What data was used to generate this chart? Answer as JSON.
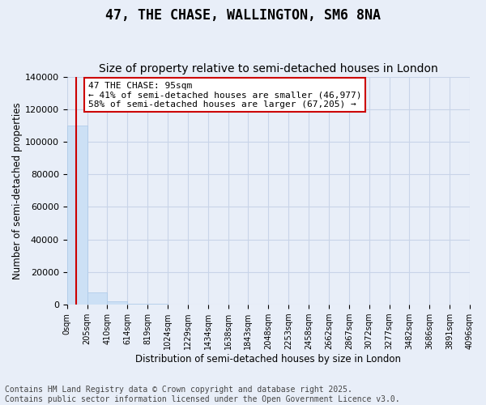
{
  "title": "47, THE CHASE, WALLINGTON, SM6 8NA",
  "subtitle": "Size of property relative to semi-detached houses in London",
  "ylabel": "Number of semi-detached properties",
  "xlabel": "Distribution of semi-detached houses by size in London",
  "footnote1": "Contains HM Land Registry data © Crown copyright and database right 2025.",
  "footnote2": "Contains public sector information licensed under the Open Government Licence v3.0.",
  "annotation_line1": "47 THE CHASE: 95sqm",
  "annotation_line2": "← 41% of semi-detached houses are smaller (46,977)",
  "annotation_line3": "58% of semi-detached houses are larger (67,205) →",
  "property_size": 95,
  "bin_edges": [
    0,
    205,
    410,
    614,
    819,
    1024,
    1229,
    1434,
    1638,
    1843,
    2048,
    2253,
    2458,
    2662,
    2867,
    3072,
    3277,
    3482,
    3686,
    3891,
    4096
  ],
  "bin_labels": [
    "0sqm",
    "205sqm",
    "410sqm",
    "614sqm",
    "819sqm",
    "1024sqm",
    "1229sqm",
    "1434sqm",
    "1638sqm",
    "1843sqm",
    "2048sqm",
    "2253sqm",
    "2458sqm",
    "2662sqm",
    "2867sqm",
    "3072sqm",
    "3277sqm",
    "3482sqm",
    "3686sqm",
    "3891sqm",
    "4096sqm"
  ],
  "bar_heights": [
    110000,
    7500,
    1800,
    700,
    350,
    180,
    100,
    70,
    45,
    28,
    18,
    12,
    9,
    7,
    5,
    4,
    3,
    3,
    2,
    2
  ],
  "bar_color": "#cce0f5",
  "bar_edge_color": "#aac8e8",
  "grid_color": "#c8d4e8",
  "background_color": "#e8eef8",
  "red_line_color": "#cc0000",
  "annotation_box_color": "#ffffff",
  "annotation_box_edge": "#cc0000",
  "ylim": [
    0,
    140000
  ],
  "yticks": [
    0,
    20000,
    40000,
    60000,
    80000,
    100000,
    120000,
    140000
  ],
  "title_fontsize": 12,
  "subtitle_fontsize": 10,
  "axis_label_fontsize": 8.5,
  "tick_fontsize": 8,
  "annotation_fontsize": 8,
  "footnote_fontsize": 7
}
